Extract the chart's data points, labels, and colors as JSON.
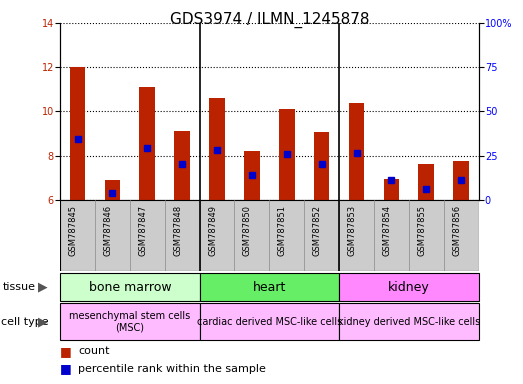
{
  "title": "GDS3974 / ILMN_1245878",
  "samples": [
    "GSM787845",
    "GSM787846",
    "GSM787847",
    "GSM787848",
    "GSM787849",
    "GSM787850",
    "GSM787851",
    "GSM787852",
    "GSM787853",
    "GSM787854",
    "GSM787855",
    "GSM787856"
  ],
  "red_values": [
    12.0,
    6.9,
    11.1,
    9.1,
    10.6,
    8.2,
    10.1,
    9.05,
    10.4,
    6.95,
    7.6,
    7.75
  ],
  "blue_values": [
    8.75,
    6.3,
    8.35,
    7.6,
    8.25,
    7.1,
    8.05,
    7.6,
    8.1,
    6.9,
    6.5,
    6.9
  ],
  "ylim_left": [
    6,
    14
  ],
  "ylim_right": [
    0,
    100
  ],
  "yticks_left": [
    6,
    8,
    10,
    12,
    14
  ],
  "yticks_right": [
    0,
    25,
    50,
    75,
    100
  ],
  "ytick_labels_right": [
    "0",
    "25",
    "50",
    "75",
    "100%"
  ],
  "red_color": "#bb2200",
  "blue_color": "#0000cc",
  "bar_width": 0.45,
  "tissue_groups": [
    {
      "label": "bone marrow",
      "start": 0,
      "end": 4,
      "color": "#ccffcc"
    },
    {
      "label": "heart",
      "start": 4,
      "end": 8,
      "color": "#66ee66"
    },
    {
      "label": "kidney",
      "start": 8,
      "end": 12,
      "color": "#ff88ff"
    }
  ],
  "cell_type_groups": [
    {
      "label": "mesenchymal stem cells\n(MSC)",
      "start": 0,
      "end": 4,
      "color": "#ffbbff"
    },
    {
      "label": "cardiac derived MSC-like cells",
      "start": 4,
      "end": 8,
      "color": "#ffbbff"
    },
    {
      "label": "kidney derived MSC-like cells",
      "start": 8,
      "end": 12,
      "color": "#ffbbff"
    }
  ],
  "grid_color": "black",
  "grid_style": "dotted",
  "title_fontsize": 11,
  "tick_fontsize": 7,
  "sample_fontsize": 6,
  "label_fontsize": 8,
  "legend_fontsize": 8,
  "row_label_fontsize": 8,
  "tissue_fontsize": 9,
  "cell_fontsize": 7,
  "sample_bg_color": "#cccccc",
  "sample_border_color": "#888888"
}
